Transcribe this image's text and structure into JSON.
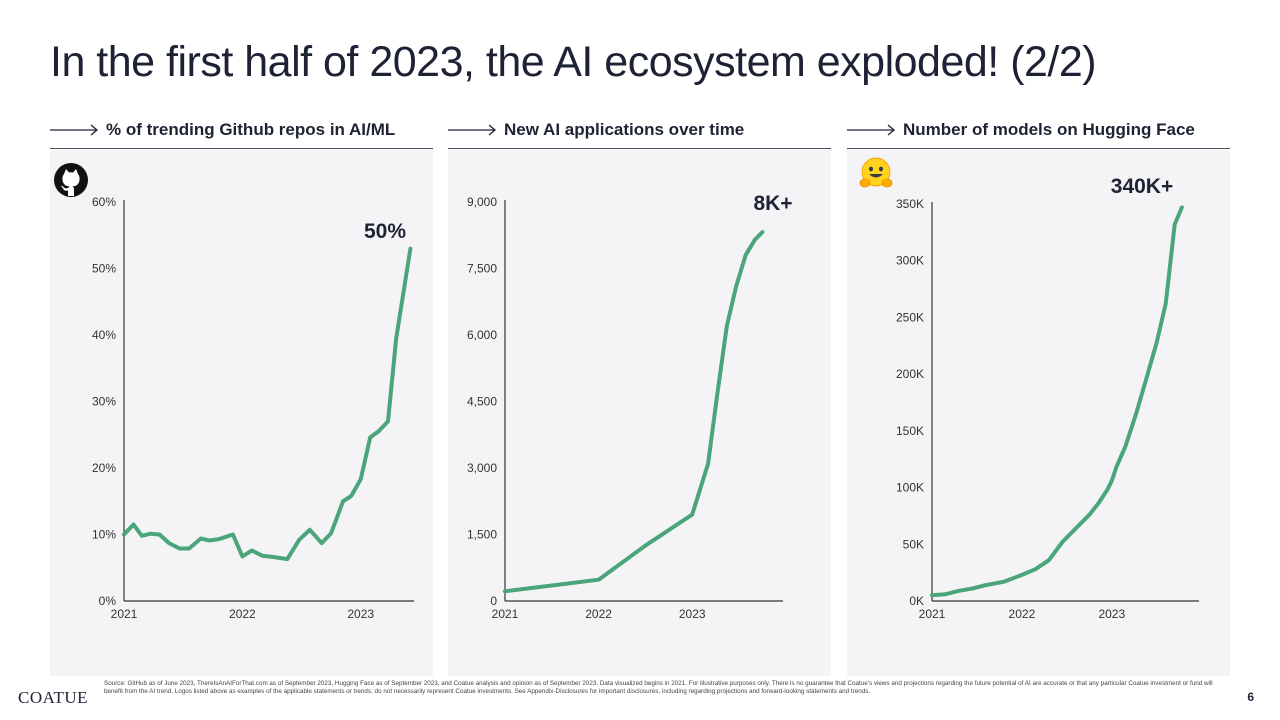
{
  "page": {
    "title": "In the first half of 2023, the AI ecosystem exploded! (2/2)",
    "footer_logo": "COATUE",
    "page_number": "6",
    "footnote": "Source: GitHub as of June 2023, ThereIsAnAIForThat.com as of September 2023, Hugging Face as of September 2023, and Coatue analysis and opinion as of September 2023. Data visualized begins in 2021. For illustrative purposes only. There is no guarantee that Coatue's views and projections regarding the future potential of AI are accurate or that any particular Coatue investment or fund will benefit from the AI trend. Logos listed above as examples of the applicable statements or trends; do not necessarily represent Coatue investments. See Appendix-Disclosures for important disclosures, including regarding projections and forward-looking statements and trends.",
    "line_color": "#4aa57a"
  },
  "chart_data": [
    {
      "type": "line",
      "title": "% of trending Github repos in AI/ML",
      "logo": "github-icon",
      "annotation": "50%",
      "ylim": [
        0,
        60
      ],
      "y_ticks": [
        "0%",
        "10%",
        "20%",
        "30%",
        "40%",
        "50%",
        "60%"
      ],
      "y_tick_values": [
        0,
        10,
        20,
        30,
        40,
        50,
        60
      ],
      "x_range": [
        2021,
        2023.45
      ],
      "x_ticks": [
        "2021",
        "2022",
        "2023"
      ],
      "x_tick_values": [
        2021,
        2022,
        2023
      ],
      "x": [
        2021.0,
        2021.08,
        2021.15,
        2021.22,
        2021.3,
        2021.38,
        2021.47,
        2021.55,
        2021.65,
        2021.72,
        2021.8,
        2021.92,
        2022.0,
        2022.08,
        2022.17,
        2022.27,
        2022.38,
        2022.48,
        2022.57,
        2022.67,
        2022.75,
        2022.85,
        2022.92,
        2023.0,
        2023.08,
        2023.15,
        2023.23,
        2023.3,
        2023.42
      ],
      "values": [
        10,
        11.5,
        9.8,
        10.1,
        10,
        8.7,
        7.9,
        7.9,
        9.4,
        9.1,
        9.3,
        10,
        6.7,
        7.6,
        6.8,
        6.6,
        6.3,
        9.2,
        10.7,
        8.7,
        10.2,
        15,
        15.8,
        18.3,
        24.6,
        25.5,
        27,
        39.5,
        53
      ]
    },
    {
      "type": "line",
      "title": "New AI applications over time",
      "logo": "",
      "annotation": "8K+",
      "ylim": [
        0,
        9000
      ],
      "y_ticks": [
        "0",
        "1,500",
        "3,000",
        "4,500",
        "6,000",
        "7,500",
        "9,000"
      ],
      "y_tick_values": [
        0,
        1500,
        3000,
        4500,
        6000,
        7500,
        9000
      ],
      "x_range": [
        2021,
        2023.97
      ],
      "x_ticks": [
        "2021",
        "2022",
        "2023"
      ],
      "x_tick_values": [
        2021,
        2022,
        2023
      ],
      "x": [
        2021.0,
        2021.5,
        2022.0,
        2022.5,
        2023.0,
        2023.17,
        2023.27,
        2023.37,
        2023.47,
        2023.57,
        2023.67,
        2023.75
      ],
      "values": [
        220,
        350,
        480,
        1250,
        1950,
        3100,
        4700,
        6200,
        7100,
        7800,
        8150,
        8320
      ]
    },
    {
      "type": "line",
      "title": "Number of models on Hugging Face",
      "logo": "hugging-face-icon",
      "annotation": "340K+",
      "ylim": [
        0,
        350
      ],
      "y_ticks": [
        "0K",
        "50K",
        "100K",
        "150K",
        "200K",
        "250K",
        "300K",
        "350K"
      ],
      "y_tick_values": [
        0,
        50,
        100,
        150,
        200,
        250,
        300,
        350
      ],
      "x_range": [
        2021,
        2023.97
      ],
      "x_ticks": [
        "2021",
        "2022",
        "2023"
      ],
      "x_tick_values": [
        2021,
        2022,
        2023
      ],
      "x": [
        2021.0,
        2021.15,
        2021.3,
        2021.45,
        2021.6,
        2021.8,
        2022.0,
        2022.15,
        2022.3,
        2022.45,
        2022.6,
        2022.75,
        2022.85,
        2022.95,
        2023.0,
        2023.05,
        2023.15,
        2023.27,
        2023.38,
        2023.5,
        2023.6,
        2023.7,
        2023.78
      ],
      "values": [
        5,
        6,
        9,
        11,
        14,
        17,
        23,
        28,
        36,
        52,
        64,
        76,
        86,
        98,
        106,
        118,
        136,
        165,
        195,
        228,
        262,
        332,
        347
      ]
    }
  ]
}
